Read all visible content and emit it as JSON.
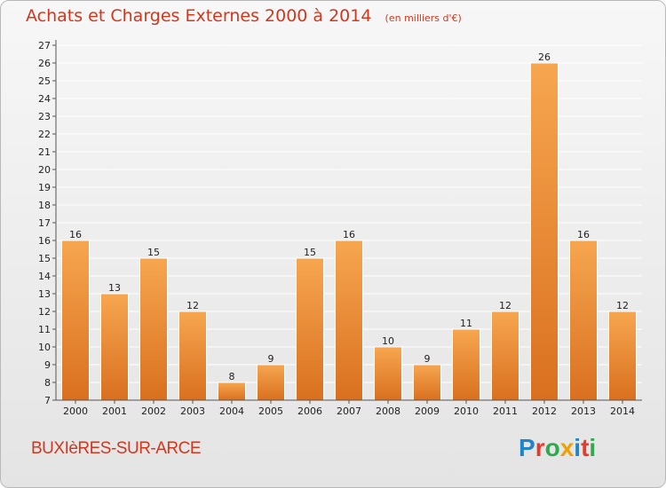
{
  "header": {
    "title": "Achats et Charges Externes 2000 à 2014",
    "unit": "(en milliers d'€)"
  },
  "footer": {
    "commune": "BUXIèRES-SUR-ARCE",
    "logo_text": "Proxiti"
  },
  "colors": {
    "bar_light": "#f7a650",
    "bar_dark": "#d9701f",
    "title": "#d2371e",
    "logo_letters": [
      "#1f86c9",
      "#e53b2c",
      "#2fa84f",
      "#f0a000",
      "#1f86c9",
      "#e53b2c",
      "#2fa84f"
    ]
  },
  "chart_data": {
    "type": "bar",
    "title": "Achats et Charges Externes 2000 à 2014",
    "subtitle": "(en milliers d'€)",
    "categories": [
      "2000",
      "2001",
      "2002",
      "2003",
      "2004",
      "2005",
      "2006",
      "2007",
      "2008",
      "2009",
      "2010",
      "2011",
      "2012",
      "2013",
      "2014"
    ],
    "values": [
      16,
      13,
      15,
      12,
      8,
      9,
      15,
      16,
      10,
      9,
      11,
      12,
      26,
      16,
      12
    ],
    "ylim": [
      7,
      27
    ],
    "yticks": [
      7,
      8,
      9,
      10,
      11,
      12,
      13,
      14,
      15,
      16,
      17,
      18,
      19,
      20,
      21,
      22,
      23,
      24,
      25,
      26,
      27
    ],
    "grid": true,
    "data_labels": true
  }
}
